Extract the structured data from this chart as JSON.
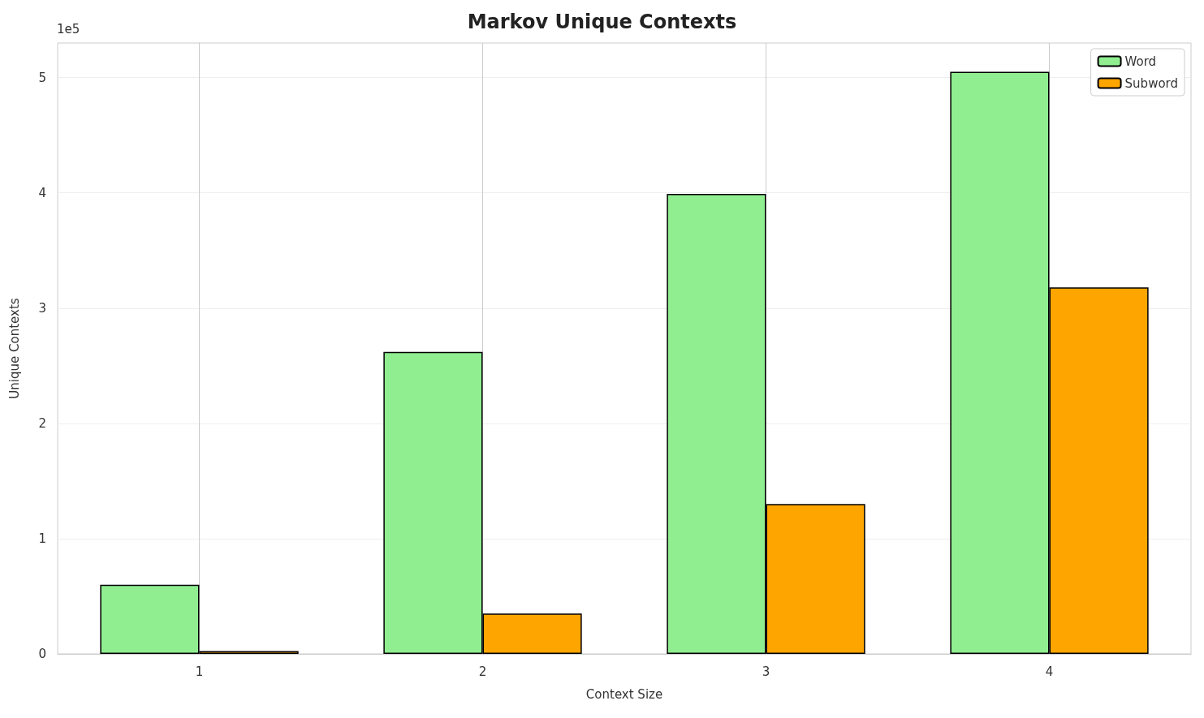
{
  "chart_data": {
    "type": "bar",
    "title": "Markov Unique Contexts",
    "xlabel": "Context Size",
    "ylabel": "Unique Contexts",
    "categories": [
      "1",
      "2",
      "3",
      "4"
    ],
    "series": [
      {
        "name": "Word",
        "color": "#90ee90",
        "values": [
          0.6,
          2.62,
          3.99,
          5.05
        ]
      },
      {
        "name": "Subword",
        "color": "#ffa500",
        "values": [
          0.025,
          0.35,
          1.3,
          3.18
        ]
      }
    ],
    "ylim": [
      0,
      5.3
    ],
    "yticks": [
      0,
      1,
      2,
      3,
      4,
      5
    ],
    "annotations": [
      "1e5"
    ],
    "grid": true,
    "legend": "top right"
  }
}
